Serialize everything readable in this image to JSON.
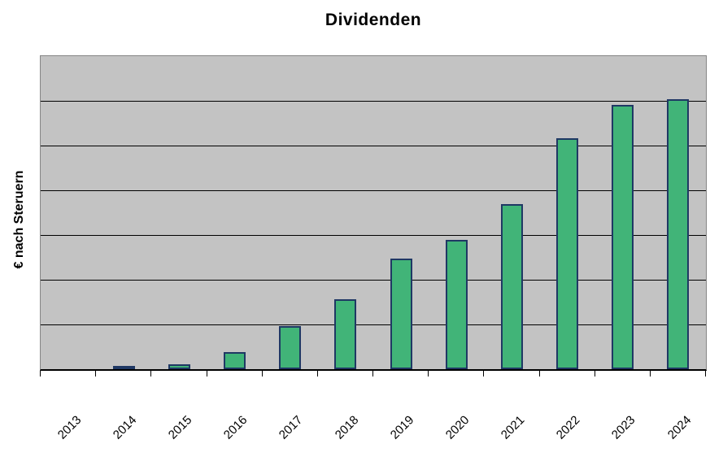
{
  "chart_data": {
    "type": "bar",
    "title": "Dividenden",
    "ylabel": "€ nach Steruern",
    "xlabel": "",
    "categories": [
      "2013",
      "2014",
      "2015",
      "2016",
      "2017",
      "2018",
      "2019",
      "2020",
      "2021",
      "2022",
      "2023",
      "2024"
    ],
    "values": [
      0,
      0.04,
      0.11,
      0.38,
      0.96,
      1.56,
      2.47,
      2.9,
      3.7,
      5.17,
      5.91,
      6.04
    ],
    "ylim": [
      0,
      7
    ],
    "gridline_step": 1,
    "y_tick_labels": "none",
    "grid": "horizontal",
    "legend": "none",
    "x_label_rotation_deg": 45,
    "colors": {
      "bar_fill": "#41b478",
      "bar_border": "#1f3864",
      "plot_background": "#c3c3c3",
      "plot_border": "#868686",
      "gridline": "#000000",
      "axis": "#000000",
      "text": "#000000",
      "page_background": "#ffffff"
    }
  }
}
